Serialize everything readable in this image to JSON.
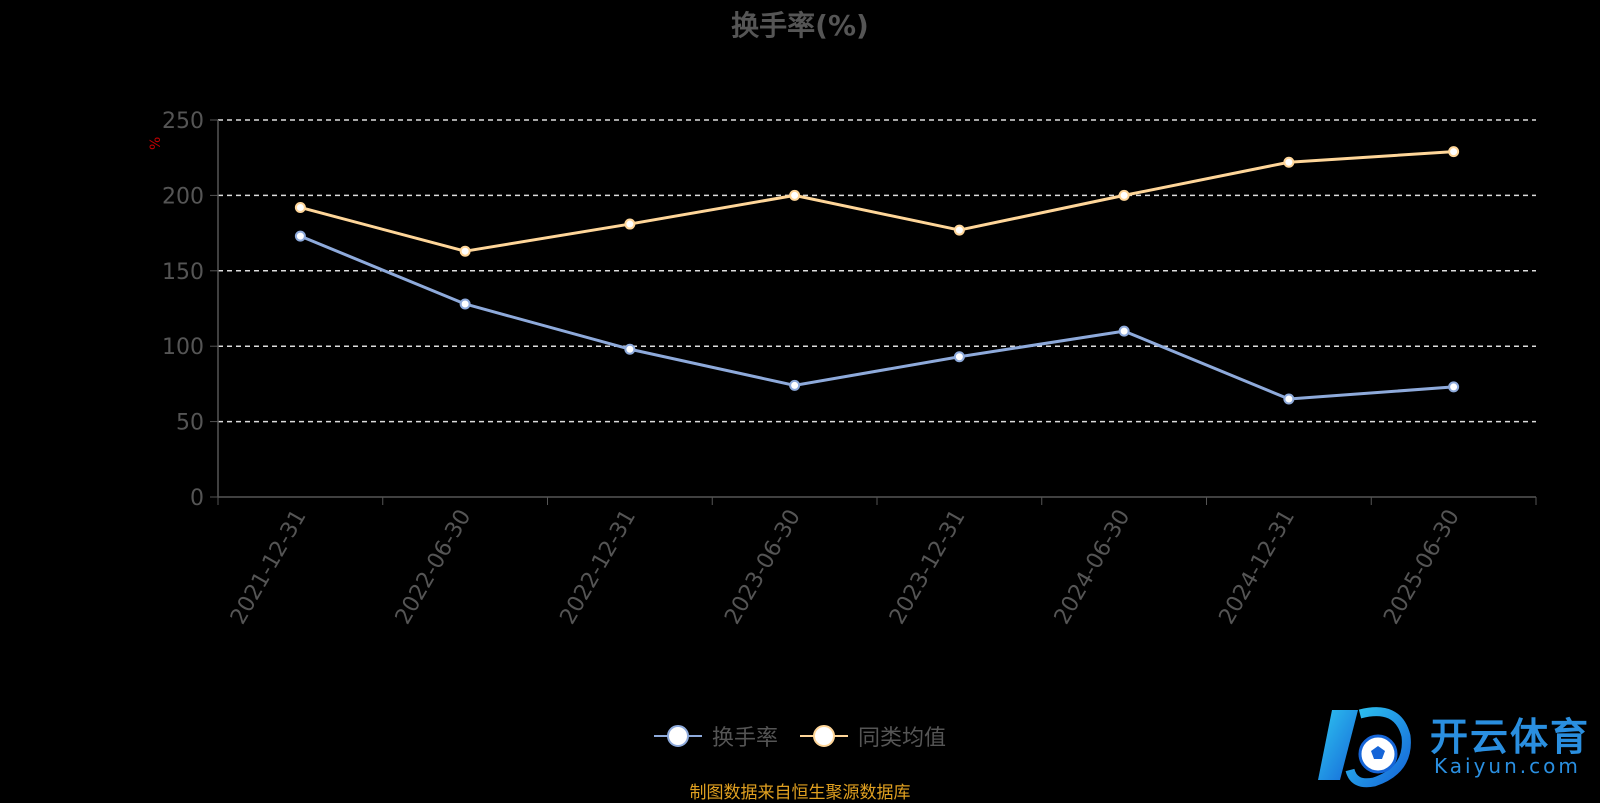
{
  "title": "换手率(%)",
  "unit_label": "%",
  "source": "制图数据来自恒生聚源数据库",
  "logo": {
    "name": "开云体育",
    "domain": "Kaiyun.com"
  },
  "chart_data": {
    "type": "line",
    "categories": [
      "2021-12-31",
      "2022-06-30",
      "2022-12-31",
      "2023-06-30",
      "2023-12-31",
      "2024-06-30",
      "2024-12-31",
      "2025-06-30"
    ],
    "series": [
      {
        "name": "换手率",
        "color": "#8eaadb",
        "values": [
          173,
          128,
          98,
          74,
          93,
          110,
          65,
          73
        ]
      },
      {
        "name": "同类均值",
        "color": "#ffd699",
        "values": [
          192,
          163,
          181,
          200,
          177,
          200,
          222,
          229
        ]
      }
    ],
    "y_ticks": [
      0,
      50,
      100,
      150,
      200,
      250
    ],
    "ylim": [
      0,
      250
    ],
    "grid": true,
    "legend_position": "bottom-center"
  }
}
